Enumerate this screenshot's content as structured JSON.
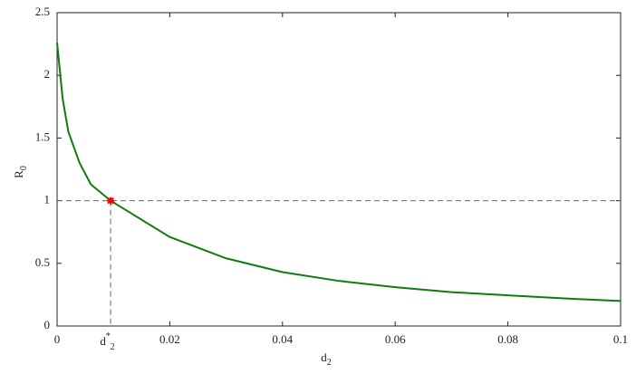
{
  "chart_data": {
    "type": "line",
    "x_label": {
      "base": "d",
      "sub": "2"
    },
    "y_label": {
      "base": "R",
      "sub": "0"
    },
    "x": [
      0,
      0.001,
      0.002,
      0.004,
      0.006,
      0.0095,
      0.02,
      0.03,
      0.04,
      0.05,
      0.06,
      0.07,
      0.08,
      0.09,
      0.1
    ],
    "series": [
      {
        "color": "#107c10",
        "values": [
          2.26,
          1.81,
          1.55,
          1.3,
          1.13,
          1.0,
          0.71,
          0.54,
          0.43,
          0.36,
          0.31,
          0.27,
          0.245,
          0.22,
          0.2
        ]
      }
    ],
    "marker": {
      "x": 0.0095,
      "y": 1,
      "color": "#ff0000",
      "label": {
        "base": "d",
        "sub": "2",
        "sup": "*"
      }
    },
    "xlim": [
      0,
      0.1
    ],
    "xticks": [
      0,
      0.02,
      0.04,
      0.06,
      0.08,
      0.1
    ],
    "ylim": [
      0,
      2.5
    ],
    "yticks": [
      0,
      0.5,
      1,
      1.5,
      2,
      2.5
    ]
  }
}
